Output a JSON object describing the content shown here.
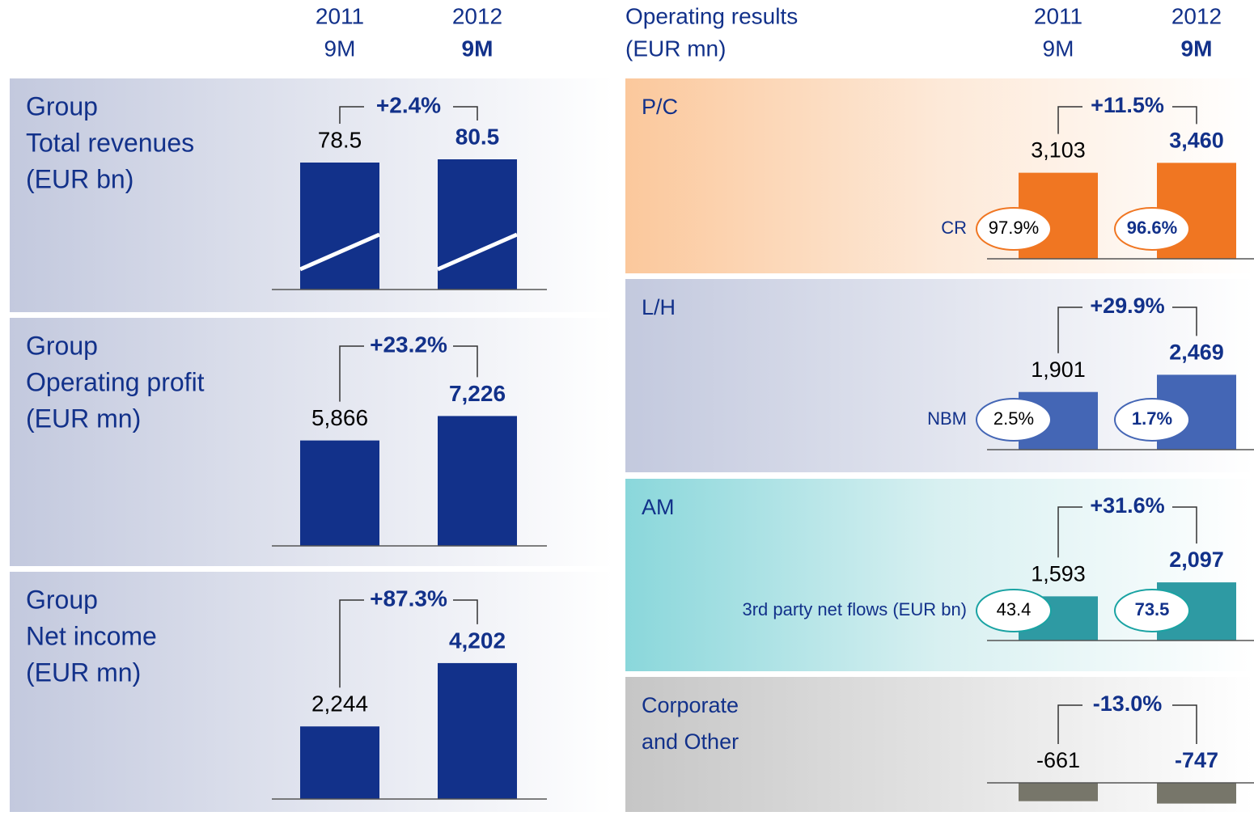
{
  "header": {
    "left": [
      {
        "year": "2011",
        "period": "9M"
      },
      {
        "year": "2012",
        "period": "9M"
      }
    ],
    "right_title": [
      "Operating results",
      "(EUR mn)"
    ],
    "right": [
      {
        "year": "2011",
        "period": "9M"
      },
      {
        "year": "2012",
        "period": "9M"
      }
    ]
  },
  "chart_data": [
    {
      "type": "bar",
      "title": [
        "Group",
        "Total revenues",
        "(EUR bn)"
      ],
      "values": [
        78.5,
        80.5
      ],
      "color": "#12318a",
      "change": "+2.4%",
      "ylim": [
        0,
        100
      ],
      "diagonal_line": true
    },
    {
      "type": "bar",
      "title": [
        "Group",
        "Operating profit",
        "(EUR mn)"
      ],
      "values": [
        5866,
        7226
      ],
      "value_labels": [
        "5,866",
        "7,226"
      ],
      "color": "#12318a",
      "change": "+23.2%",
      "ylim": [
        0,
        9000
      ]
    },
    {
      "type": "bar",
      "title": [
        "Group",
        "Net income",
        "(EUR mn)"
      ],
      "values": [
        2244,
        4202
      ],
      "value_labels": [
        "2,244",
        "4,202"
      ],
      "color": "#12318a",
      "change": "+87.3%",
      "ylim": [
        0,
        5000
      ]
    },
    {
      "type": "bar",
      "title": [
        "P/C"
      ],
      "values": [
        3103,
        3460
      ],
      "value_labels": [
        "3,103",
        "3,460"
      ],
      "color": "#f07622",
      "change": "+11.5%",
      "ylim": [
        0,
        3500
      ],
      "ratio_label": "CR",
      "ratio_labels": [
        "97.9%",
        "96.6%"
      ]
    },
    {
      "type": "bar",
      "title": [
        "L/H"
      ],
      "values": [
        1901,
        2469
      ],
      "value_labels": [
        "1,901",
        "2,469"
      ],
      "color": "#4466b5",
      "change": "+29.9%",
      "ylim": [
        0,
        3200
      ],
      "ratio_label": "NBM",
      "ratio_labels": [
        "2.5%",
        "1.7%"
      ]
    },
    {
      "type": "bar",
      "title": [
        "AM"
      ],
      "values": [
        1593,
        2097
      ],
      "value_labels": [
        "1,593",
        "2,097"
      ],
      "color": "#2e9aa3",
      "change": "+31.6%",
      "ylim": [
        0,
        3500
      ],
      "ratio_label": "3rd party net flows (EUR bn)",
      "ratio_labels": [
        "43.4",
        "73.5"
      ]
    },
    {
      "type": "bar",
      "title": [
        "Corporate",
        "and Other"
      ],
      "values": [
        -661,
        -747
      ],
      "color": "#77766a",
      "change": "-13.0%",
      "ylim": [
        -3500,
        0
      ]
    }
  ]
}
